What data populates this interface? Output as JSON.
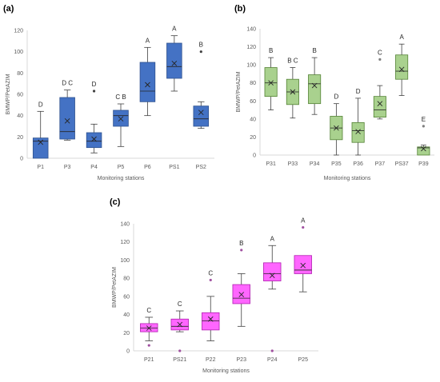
{
  "chart_data": [
    {
      "panel": "(a)",
      "type": "box",
      "xlabel": "Monitoring stations",
      "ylabel": "BMWP/PetAZIM",
      "ylim": [
        0,
        120
      ],
      "yticks": [
        0,
        20,
        40,
        60,
        80,
        100,
        120
      ],
      "color": "#4472c4",
      "edge_color": "#2f528f",
      "outlier_color": "#404040",
      "boxes": [
        {
          "name": "P1",
          "min": 0,
          "q1": 0,
          "median": 16,
          "q3": 19,
          "max": 44,
          "mean": 15,
          "letter": "D",
          "outliers": []
        },
        {
          "name": "P3",
          "min": 17,
          "q1": 18,
          "median": 25,
          "q3": 57,
          "max": 64,
          "mean": 35,
          "letter": "D C",
          "outliers": []
        },
        {
          "name": "P4",
          "min": 5,
          "q1": 10,
          "median": 16,
          "q3": 24,
          "max": 32,
          "mean": 18,
          "letter": "D",
          "outliers": [
            63
          ]
        },
        {
          "name": "P5",
          "min": 11,
          "q1": 30,
          "median": 40,
          "q3": 45,
          "max": 51,
          "mean": 37,
          "letter": "C B",
          "outliers": []
        },
        {
          "name": "P6",
          "min": 40,
          "q1": 53,
          "median": 63,
          "q3": 90,
          "max": 104,
          "mean": 69,
          "letter": "A",
          "outliers": []
        },
        {
          "name": "PS1",
          "min": 63,
          "q1": 75,
          "median": 86,
          "q3": 108,
          "max": 115,
          "mean": 89,
          "letter": "A",
          "outliers": []
        },
        {
          "name": "PS2",
          "min": 28,
          "q1": 30,
          "median": 37,
          "q3": 49,
          "max": 53,
          "mean": 43,
          "letter": "B",
          "outliers": [
            100
          ]
        }
      ]
    },
    {
      "panel": "(b)",
      "type": "box",
      "xlabel": "Monitoring stations",
      "ylabel": "BMWP/PetAZIM",
      "ylim": [
        0,
        140
      ],
      "yticks": [
        0,
        20,
        40,
        60,
        80,
        100,
        120,
        140
      ],
      "color": "#a9d18e",
      "edge_color": "#548235",
      "outlier_color": "#7f7f7f",
      "boxes": [
        {
          "name": "P31",
          "min": 50,
          "q1": 65,
          "median": 80,
          "q3": 97,
          "max": 108,
          "mean": 80,
          "letter": "B",
          "outliers": []
        },
        {
          "name": "P33",
          "min": 41,
          "q1": 56,
          "median": 70,
          "q3": 84,
          "max": 97,
          "mean": 70,
          "letter": "B C",
          "outliers": []
        },
        {
          "name": "P34",
          "min": 45,
          "q1": 57,
          "median": 79,
          "q3": 89,
          "max": 108,
          "mean": 77,
          "letter": "B",
          "outliers": []
        },
        {
          "name": "P35",
          "min": 0,
          "q1": 17,
          "median": 30,
          "q3": 43,
          "max": 57,
          "mean": 30,
          "letter": "D",
          "outliers": []
        },
        {
          "name": "P36",
          "min": 0,
          "q1": 14,
          "median": 27,
          "q3": 36,
          "max": 63,
          "mean": 26,
          "letter": "D",
          "outliers": []
        },
        {
          "name": "P37",
          "min": 40,
          "q1": 42,
          "median": 50,
          "q3": 65,
          "max": 77,
          "mean": 57,
          "letter": "C",
          "outliers": [
            106
          ]
        },
        {
          "name": "PS37",
          "min": 66,
          "q1": 84,
          "median": 93,
          "q3": 111,
          "max": 123,
          "mean": 95,
          "letter": "A",
          "outliers": []
        },
        {
          "name": "P39",
          "min": 0,
          "q1": 0,
          "median": 8,
          "q3": 9,
          "max": 11,
          "mean": 7,
          "letter": "E",
          "outliers": [
            32
          ]
        }
      ]
    },
    {
      "panel": "(c)",
      "type": "box",
      "xlabel": "Monitoring stations",
      "ylabel": "BMWP/PetAZIM",
      "ylim": [
        0,
        140
      ],
      "yticks": [
        0,
        20,
        40,
        60,
        80,
        100,
        120,
        140
      ],
      "color": "#ff66ff",
      "edge_color": "#b020b0",
      "outlier_color": "#a050a0",
      "boxes": [
        {
          "name": "P21",
          "min": 11,
          "q1": 21,
          "median": 25,
          "q3": 30,
          "max": 37,
          "mean": 25,
          "letter": "C",
          "outliers": [
            6
          ]
        },
        {
          "name": "PS21",
          "min": 21,
          "q1": 23,
          "median": 27,
          "q3": 35,
          "max": 44,
          "mean": 29,
          "letter": "C",
          "outliers": [
            0
          ]
        },
        {
          "name": "P22",
          "min": 11,
          "q1": 23,
          "median": 33,
          "q3": 42,
          "max": 60,
          "mean": 35,
          "letter": "C",
          "outliers": [
            78
          ]
        },
        {
          "name": "P23",
          "min": 27,
          "q1": 52,
          "median": 58,
          "q3": 73,
          "max": 85,
          "mean": 62,
          "letter": "B",
          "outliers": [
            111
          ]
        },
        {
          "name": "P24",
          "min": 68,
          "q1": 77,
          "median": 85,
          "q3": 97,
          "max": 116,
          "mean": 83,
          "letter": "A",
          "outliers": [
            0
          ]
        },
        {
          "name": "P25",
          "min": 65,
          "q1": 85,
          "median": 89,
          "q3": 105,
          "max": 105,
          "mean": 94,
          "letter": "A",
          "outliers": [
            136
          ]
        }
      ]
    }
  ]
}
